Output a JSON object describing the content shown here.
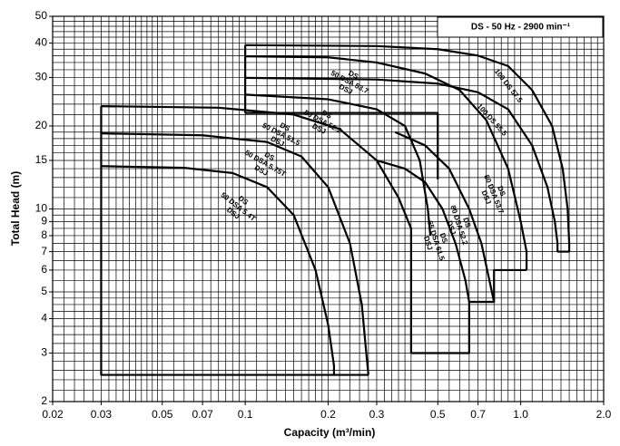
{
  "chart_data": {
    "type": "line",
    "title": "DS - 50 Hz - 2900 min⁻¹",
    "x_label": "Capacity (m³/min)",
    "y_label": "Total Head (m)",
    "log_x": true,
    "log_y": true,
    "grid": true,
    "xlim": [
      0.02,
      2.0
    ],
    "ylim": [
      2,
      50
    ],
    "xticks": [
      0.02,
      0.03,
      0.05,
      0.07,
      0.1,
      0.2,
      0.3,
      0.5,
      0.7,
      {
        "value": 1,
        "label": "1.0"
      },
      {
        "value": 2,
        "label": "2.0"
      }
    ],
    "yticks": [
      2,
      3,
      4,
      5,
      6,
      7,
      8,
      9,
      10,
      15,
      20,
      30,
      40,
      50
    ],
    "xgrid": [
      0.02,
      0.022,
      0.024,
      0.026,
      0.028,
      0.03,
      0.032,
      0.034,
      0.036,
      0.038,
      0.04,
      0.042,
      0.044,
      0.046,
      0.048,
      0.05,
      0.055,
      0.06,
      0.065,
      0.07,
      0.075,
      0.08,
      0.085,
      0.09,
      0.095,
      0.1,
      0.11,
      0.12,
      0.13,
      0.14,
      0.15,
      0.16,
      0.17,
      0.18,
      0.19,
      0.2,
      0.22,
      0.24,
      0.26,
      0.28,
      0.3,
      0.32,
      0.34,
      0.36,
      0.38,
      0.4,
      0.45,
      0.5,
      0.55,
      0.6,
      0.65,
      0.7,
      0.75,
      0.8,
      0.85,
      0.9,
      0.95,
      1,
      1.1,
      1.2,
      1.3,
      1.4,
      1.5,
      1.6,
      1.7,
      1.8,
      1.9,
      2
    ],
    "ygrid": [
      2,
      2.2,
      2.4,
      2.6,
      2.8,
      3,
      3.25,
      3.5,
      3.75,
      4,
      4.25,
      4.5,
      4.75,
      5,
      5.5,
      6,
      6.5,
      7,
      7.5,
      8,
      8.5,
      9,
      9.5,
      10,
      11,
      12,
      13,
      14,
      15,
      16,
      17,
      18,
      19,
      20,
      22,
      24,
      26,
      28,
      30,
      32,
      34,
      36,
      38,
      40,
      42,
      44,
      46,
      48,
      50
    ],
    "series": [
      {
        "color": "#000000",
        "labels": [
          [
            "DS",
            "50 DSA 5.4T",
            "DSJ"
          ]
        ],
        "x": [
          0.03,
          0.06,
          0.09,
          0.12,
          0.15,
          0.18,
          0.2,
          0.21,
          0.21
        ],
        "values": [
          14.3,
          14.1,
          13.5,
          12,
          9.5,
          6,
          3.8,
          2.7,
          2.5
        ]
      },
      {
        "color": "#000000",
        "labels": [
          [
            "DS",
            "50 DSA 5.75T",
            "DSJ"
          ]
        ],
        "x": [
          0.03,
          0.07,
          0.12,
          0.16,
          0.2,
          0.24,
          0.265,
          0.275,
          0.28
        ],
        "values": [
          18.8,
          18.5,
          17.5,
          15.5,
          12,
          7.5,
          4.5,
          3,
          2.5
        ]
      },
      {
        "color": "#000000",
        "labels": [
          [
            "DS",
            "50 DSA 51.5",
            "DSJ"
          ]
        ],
        "x": [
          0.03,
          0.08,
          0.15,
          0.22,
          0.3,
          0.36,
          0.4,
          0.4
        ],
        "values": [
          23.6,
          23.3,
          22,
          19.5,
          15,
          11,
          8.5,
          3
        ]
      },
      {
        "color": "#000000",
        "labels": [
          [
            "DS",
            "50 DSA 52.2",
            "DSJ"
          ]
        ],
        "x": [
          0.1,
          0.2,
          0.3,
          0.38,
          0.43,
          0.46,
          0.47
        ],
        "values": [
          26,
          25,
          23,
          20,
          15,
          10,
          8
        ]
      },
      {
        "color": "#000000",
        "labels": [
          [
            "DS",
            "65 DSA 61.5",
            "DSJ"
          ]
        ],
        "x": [
          0.3,
          0.38,
          0.45,
          0.52,
          0.58,
          0.63,
          0.65
        ],
        "values": [
          15,
          14,
          12.5,
          10,
          7.5,
          5.5,
          4.6
        ]
      },
      {
        "color": "#000000",
        "labels": [
          [
            "DS",
            "80 DSA 52.2",
            "DSJ"
          ]
        ],
        "x": [
          0.35,
          0.45,
          0.55,
          0.65,
          0.72,
          0.77,
          0.8
        ],
        "values": [
          19,
          17,
          14,
          10,
          7.5,
          5.5,
          4.6
        ]
      },
      {
        "color": "#000000",
        "labels": [
          [
            "DS",
            "50 DSA 53.7",
            "DSJ"
          ],
          [
            "DS",
            "80 DSA 53.7",
            "DSJ"
          ]
        ],
        "x": [
          0.1,
          0.2,
          0.3,
          0.45,
          0.6,
          0.75,
          0.9,
          1,
          1.05,
          1.05
        ],
        "values": [
          35.8,
          35.5,
          34,
          31,
          27,
          21,
          14,
          9,
          7,
          6
        ]
      },
      {
        "color": "#000000",
        "labels": [
          [
            "100 DS 55.5"
          ]
        ],
        "x": [
          0.1,
          0.3,
          0.5,
          0.7,
          0.9,
          1.1,
          1.25,
          1.33,
          1.36,
          1.36
        ],
        "values": [
          29.9,
          29.5,
          28.5,
          26.5,
          23,
          17,
          12,
          9,
          7.5,
          7
        ]
      },
      {
        "color": "#000000",
        "labels": [
          [
            "100 DS 57.5"
          ]
        ],
        "x": [
          0.1,
          0.3,
          0.5,
          0.7,
          0.9,
          1.1,
          1.3,
          1.42,
          1.48,
          1.5,
          1.5
        ],
        "values": [
          39.3,
          39,
          38,
          36,
          33,
          27,
          20,
          14,
          10,
          7.5,
          7
        ]
      },
      {
        "color": "#000000",
        "x": [
          0.28,
          0.03,
          0.03
        ],
        "values": [
          2.5,
          2.5,
          23.6
        ]
      },
      {
        "color": "#000000",
        "x": [
          0.1,
          0.1
        ],
        "values": [
          22.3,
          39.3
        ]
      },
      {
        "color": "#000000",
        "x": [
          0.4,
          0.65,
          0.65,
          0.8,
          0.8,
          1.05
        ],
        "values": [
          3,
          3,
          4.6,
          4.6,
          6,
          6
        ]
      },
      {
        "color": "#000000",
        "x": [
          1.36,
          1.5
        ],
        "values": [
          7,
          7
        ]
      },
      {
        "color": "#000000",
        "x": [
          0.1,
          0.5,
          0.5
        ],
        "values": [
          22.3,
          22.3,
          12.8
        ]
      }
    ]
  }
}
